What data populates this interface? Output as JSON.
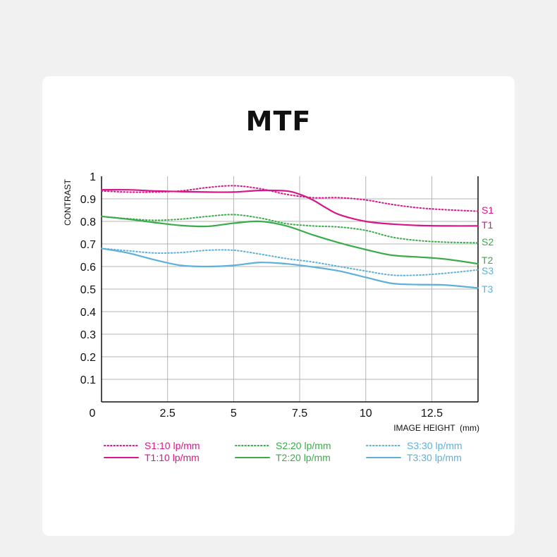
{
  "chart_data": {
    "type": "line",
    "title": "MTF",
    "xlabel": "IMAGE HEIGHT  (mm)",
    "ylabel": "CONTRAST",
    "xlim": [
      0,
      14.25
    ],
    "ylim": [
      0,
      1
    ],
    "x_ticks": [
      {
        "value": 0,
        "label": "0"
      },
      {
        "value": 2.5,
        "label": "2.5"
      },
      {
        "value": 5,
        "label": "5"
      },
      {
        "value": 7.5,
        "label": "7.5"
      },
      {
        "value": 10,
        "label": "10"
      },
      {
        "value": 12.5,
        "label": "12.5"
      }
    ],
    "y_ticks": [
      {
        "value": 0.1,
        "label": "0.1"
      },
      {
        "value": 0.2,
        "label": "0.2"
      },
      {
        "value": 0.3,
        "label": "0.3"
      },
      {
        "value": 0.4,
        "label": "0.4"
      },
      {
        "value": 0.5,
        "label": "0.5"
      },
      {
        "value": 0.6,
        "label": "0.6"
      },
      {
        "value": 0.7,
        "label": "0.7"
      },
      {
        "value": 0.8,
        "label": "0.8"
      },
      {
        "value": 0.9,
        "label": "0.9"
      },
      {
        "value": 1,
        "label": "1"
      }
    ],
    "grid": true,
    "legend_position": "bottom",
    "series": [
      {
        "id": "s1",
        "end_label": "S1",
        "legend": "S1:10 lp/mm",
        "color": "#d6168a",
        "style": "dotted",
        "x": [
          0,
          1,
          2,
          3,
          4,
          5,
          6,
          7,
          8,
          9,
          10,
          11,
          12,
          13,
          14.25
        ],
        "y": [
          0.935,
          0.93,
          0.93,
          0.935,
          0.95,
          0.958,
          0.945,
          0.92,
          0.905,
          0.905,
          0.895,
          0.875,
          0.86,
          0.852,
          0.845
        ]
      },
      {
        "id": "t1",
        "end_label": "T1",
        "legend": "T1:10 lp/mm",
        "color": "#d6168a",
        "style": "solid",
        "x": [
          0,
          1,
          2,
          3,
          4,
          5,
          6,
          7,
          7.5,
          8,
          8.5,
          9,
          10,
          11,
          12,
          13,
          14.25
        ],
        "y": [
          0.94,
          0.94,
          0.935,
          0.932,
          0.93,
          0.93,
          0.937,
          0.935,
          0.92,
          0.895,
          0.86,
          0.83,
          0.8,
          0.788,
          0.782,
          0.78,
          0.78
        ]
      },
      {
        "id": "s2",
        "end_label": "S2",
        "legend": "S2:20 lp/mm",
        "color": "#3aab4a",
        "style": "dotted",
        "x": [
          0,
          1,
          2,
          3,
          4,
          5,
          6,
          7,
          8,
          9,
          10,
          11,
          12,
          13,
          14.25
        ],
        "y": [
          0.822,
          0.812,
          0.805,
          0.81,
          0.822,
          0.83,
          0.815,
          0.79,
          0.78,
          0.775,
          0.76,
          0.73,
          0.715,
          0.708,
          0.705
        ]
      },
      {
        "id": "t2",
        "end_label": "T2",
        "legend": "T2:20 lp/mm",
        "color": "#3aab4a",
        "style": "solid",
        "x": [
          0,
          1,
          2,
          3,
          4,
          5,
          6,
          7,
          8,
          9,
          10,
          11,
          12,
          13,
          14.25
        ],
        "y": [
          0.822,
          0.81,
          0.795,
          0.782,
          0.778,
          0.792,
          0.8,
          0.78,
          0.74,
          0.705,
          0.675,
          0.65,
          0.642,
          0.633,
          0.612
        ]
      },
      {
        "id": "s3",
        "end_label": "S3",
        "legend": "S3:30 lp/mm",
        "color": "#5eb0d8",
        "style": "dotted",
        "x": [
          0,
          1,
          2,
          3,
          4,
          5,
          6,
          7,
          8,
          9,
          10,
          11,
          12,
          13,
          14.25
        ],
        "y": [
          0.68,
          0.67,
          0.66,
          0.662,
          0.672,
          0.672,
          0.655,
          0.635,
          0.62,
          0.6,
          0.58,
          0.562,
          0.562,
          0.57,
          0.585
        ]
      },
      {
        "id": "t3",
        "end_label": "T3",
        "legend": "T3:30 lp/mm",
        "color": "#5eb0d8",
        "style": "solid",
        "x": [
          0,
          1,
          2,
          3,
          4,
          5,
          6,
          7,
          8,
          9,
          10,
          11,
          12,
          13,
          14.25
        ],
        "y": [
          0.68,
          0.66,
          0.63,
          0.605,
          0.6,
          0.605,
          0.618,
          0.612,
          0.598,
          0.58,
          0.552,
          0.525,
          0.52,
          0.518,
          0.505
        ]
      }
    ]
  }
}
